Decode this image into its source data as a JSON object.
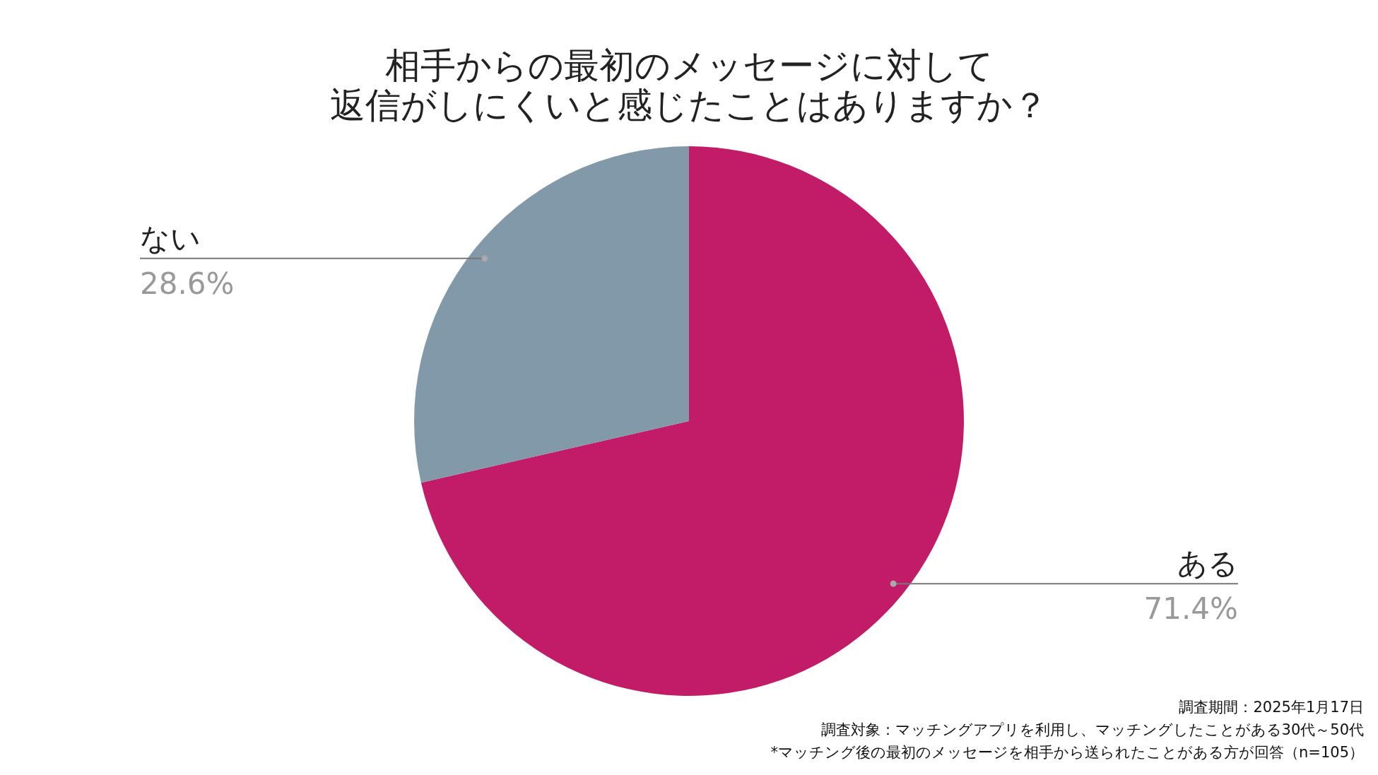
{
  "chart_data": {
    "type": "pie",
    "title": "相手からの最初のメッセージに対して返信がしにくいと感じたことはありますか？",
    "categories": [
      "ある",
      "ない"
    ],
    "values": [
      71.4,
      28.6
    ],
    "colors": [
      "#c21c68",
      "#8199a8"
    ],
    "value_labels": [
      "71.4%",
      "28.6%"
    ],
    "annotations": [
      "調査期間：2025年1月17日",
      "調査対象：マッチングアプリを利用し、マッチングしたことがある30代～50代",
      "*マッチング後の最初のメッセージを相手から送られたことがある方が回答（n=105）"
    ]
  }
}
